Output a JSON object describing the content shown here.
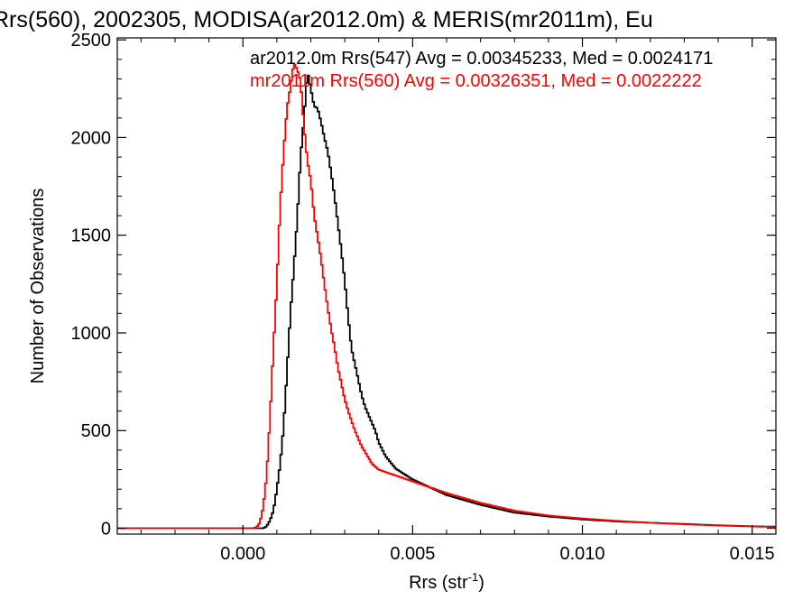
{
  "chart_data": {
    "type": "line",
    "title": "Rrs(560), 2002305, MODISA(ar2012.0m) & MERIS(mr2011m), Eu",
    "xlabel_main": "Rrs (str",
    "xlabel_sup": "-1",
    "xlabel_close": ")",
    "ylabel": "Number of Observations",
    "xlim": [
      -0.0037,
      0.0157
    ],
    "ylim": [
      -30,
      2510
    ],
    "x_ticks": [
      0.0,
      0.005,
      0.01,
      0.015
    ],
    "x_tick_labels": [
      "0.000",
      "0.005",
      "0.010",
      "0.015"
    ],
    "y_ticks": [
      0,
      500,
      1000,
      1500,
      2000,
      2500
    ],
    "y_tick_labels": [
      "0",
      "500",
      "1000",
      "1500",
      "2000",
      "2500"
    ],
    "grid": false,
    "legend_placement": "top-right",
    "series": [
      {
        "name": "ar2012.0m Rrs(547) Avg = 0.00345233, Med = 0.0024171",
        "color": "#000000",
        "points": [
          [
            -0.0037,
            0
          ],
          [
            0.0006,
            0
          ],
          [
            0.0007,
            10
          ],
          [
            0.0008,
            40
          ],
          [
            0.0009,
            90
          ],
          [
            0.001,
            200
          ],
          [
            0.0011,
            330
          ],
          [
            0.0012,
            520
          ],
          [
            0.0013,
            800
          ],
          [
            0.0014,
            1100
          ],
          [
            0.0015,
            1330
          ],
          [
            0.0016,
            1580
          ],
          [
            0.0017,
            1900
          ],
          [
            0.0018,
            2100
          ],
          [
            0.0019,
            2340
          ],
          [
            0.002,
            2250
          ],
          [
            0.0021,
            2160
          ],
          [
            0.0022,
            2150
          ],
          [
            0.0023,
            2080
          ],
          [
            0.0024,
            2000
          ],
          [
            0.0025,
            1930
          ],
          [
            0.0026,
            1820
          ],
          [
            0.0027,
            1700
          ],
          [
            0.0028,
            1560
          ],
          [
            0.0029,
            1420
          ],
          [
            0.003,
            1270
          ],
          [
            0.0031,
            1080
          ],
          [
            0.0032,
            920
          ],
          [
            0.0033,
            840
          ],
          [
            0.0034,
            760
          ],
          [
            0.0035,
            680
          ],
          [
            0.0036,
            620
          ],
          [
            0.0037,
            580
          ],
          [
            0.0038,
            540
          ],
          [
            0.0039,
            500
          ],
          [
            0.004,
            440
          ],
          [
            0.0042,
            370
          ],
          [
            0.0045,
            305
          ],
          [
            0.005,
            250
          ],
          [
            0.0055,
            210
          ],
          [
            0.006,
            170
          ],
          [
            0.0065,
            145
          ],
          [
            0.007,
            120
          ],
          [
            0.0075,
            100
          ],
          [
            0.008,
            80
          ],
          [
            0.009,
            60
          ],
          [
            0.01,
            45
          ],
          [
            0.011,
            35
          ],
          [
            0.012,
            28
          ],
          [
            0.013,
            22
          ],
          [
            0.014,
            15
          ],
          [
            0.015,
            10
          ],
          [
            0.0157,
            8
          ]
        ]
      },
      {
        "name": "mr2011m Rrs(560) Avg = 0.00326351, Med = 0.0022222",
        "color": "#ff0000",
        "points": [
          [
            -0.0037,
            0
          ],
          [
            0.0003,
            0
          ],
          [
            0.0004,
            5
          ],
          [
            0.0005,
            30
          ],
          [
            0.0006,
            110
          ],
          [
            0.0007,
            270
          ],
          [
            0.0008,
            560
          ],
          [
            0.0009,
            920
          ],
          [
            0.001,
            1250
          ],
          [
            0.0011,
            1650
          ],
          [
            0.0012,
            1930
          ],
          [
            0.0013,
            2150
          ],
          [
            0.0014,
            2260
          ],
          [
            0.0015,
            2380
          ],
          [
            0.0016,
            2350
          ],
          [
            0.0017,
            2290
          ],
          [
            0.0018,
            2060
          ],
          [
            0.0019,
            1880
          ],
          [
            0.002,
            1780
          ],
          [
            0.0021,
            1600
          ],
          [
            0.0022,
            1490
          ],
          [
            0.0023,
            1380
          ],
          [
            0.0024,
            1250
          ],
          [
            0.0025,
            1130
          ],
          [
            0.0026,
            1020
          ],
          [
            0.0027,
            930
          ],
          [
            0.0028,
            820
          ],
          [
            0.0029,
            740
          ],
          [
            0.003,
            660
          ],
          [
            0.0031,
            600
          ],
          [
            0.0032,
            550
          ],
          [
            0.0033,
            500
          ],
          [
            0.0034,
            460
          ],
          [
            0.0035,
            420
          ],
          [
            0.0036,
            390
          ],
          [
            0.0037,
            360
          ],
          [
            0.0038,
            330
          ],
          [
            0.004,
            300
          ],
          [
            0.0045,
            270
          ],
          [
            0.005,
            240
          ],
          [
            0.0055,
            210
          ],
          [
            0.006,
            180
          ],
          [
            0.0065,
            155
          ],
          [
            0.007,
            130
          ],
          [
            0.0075,
            110
          ],
          [
            0.008,
            90
          ],
          [
            0.009,
            65
          ],
          [
            0.01,
            50
          ],
          [
            0.011,
            38
          ],
          [
            0.012,
            28
          ],
          [
            0.013,
            20
          ],
          [
            0.014,
            14
          ],
          [
            0.015,
            9
          ],
          [
            0.0157,
            6
          ]
        ]
      }
    ]
  }
}
